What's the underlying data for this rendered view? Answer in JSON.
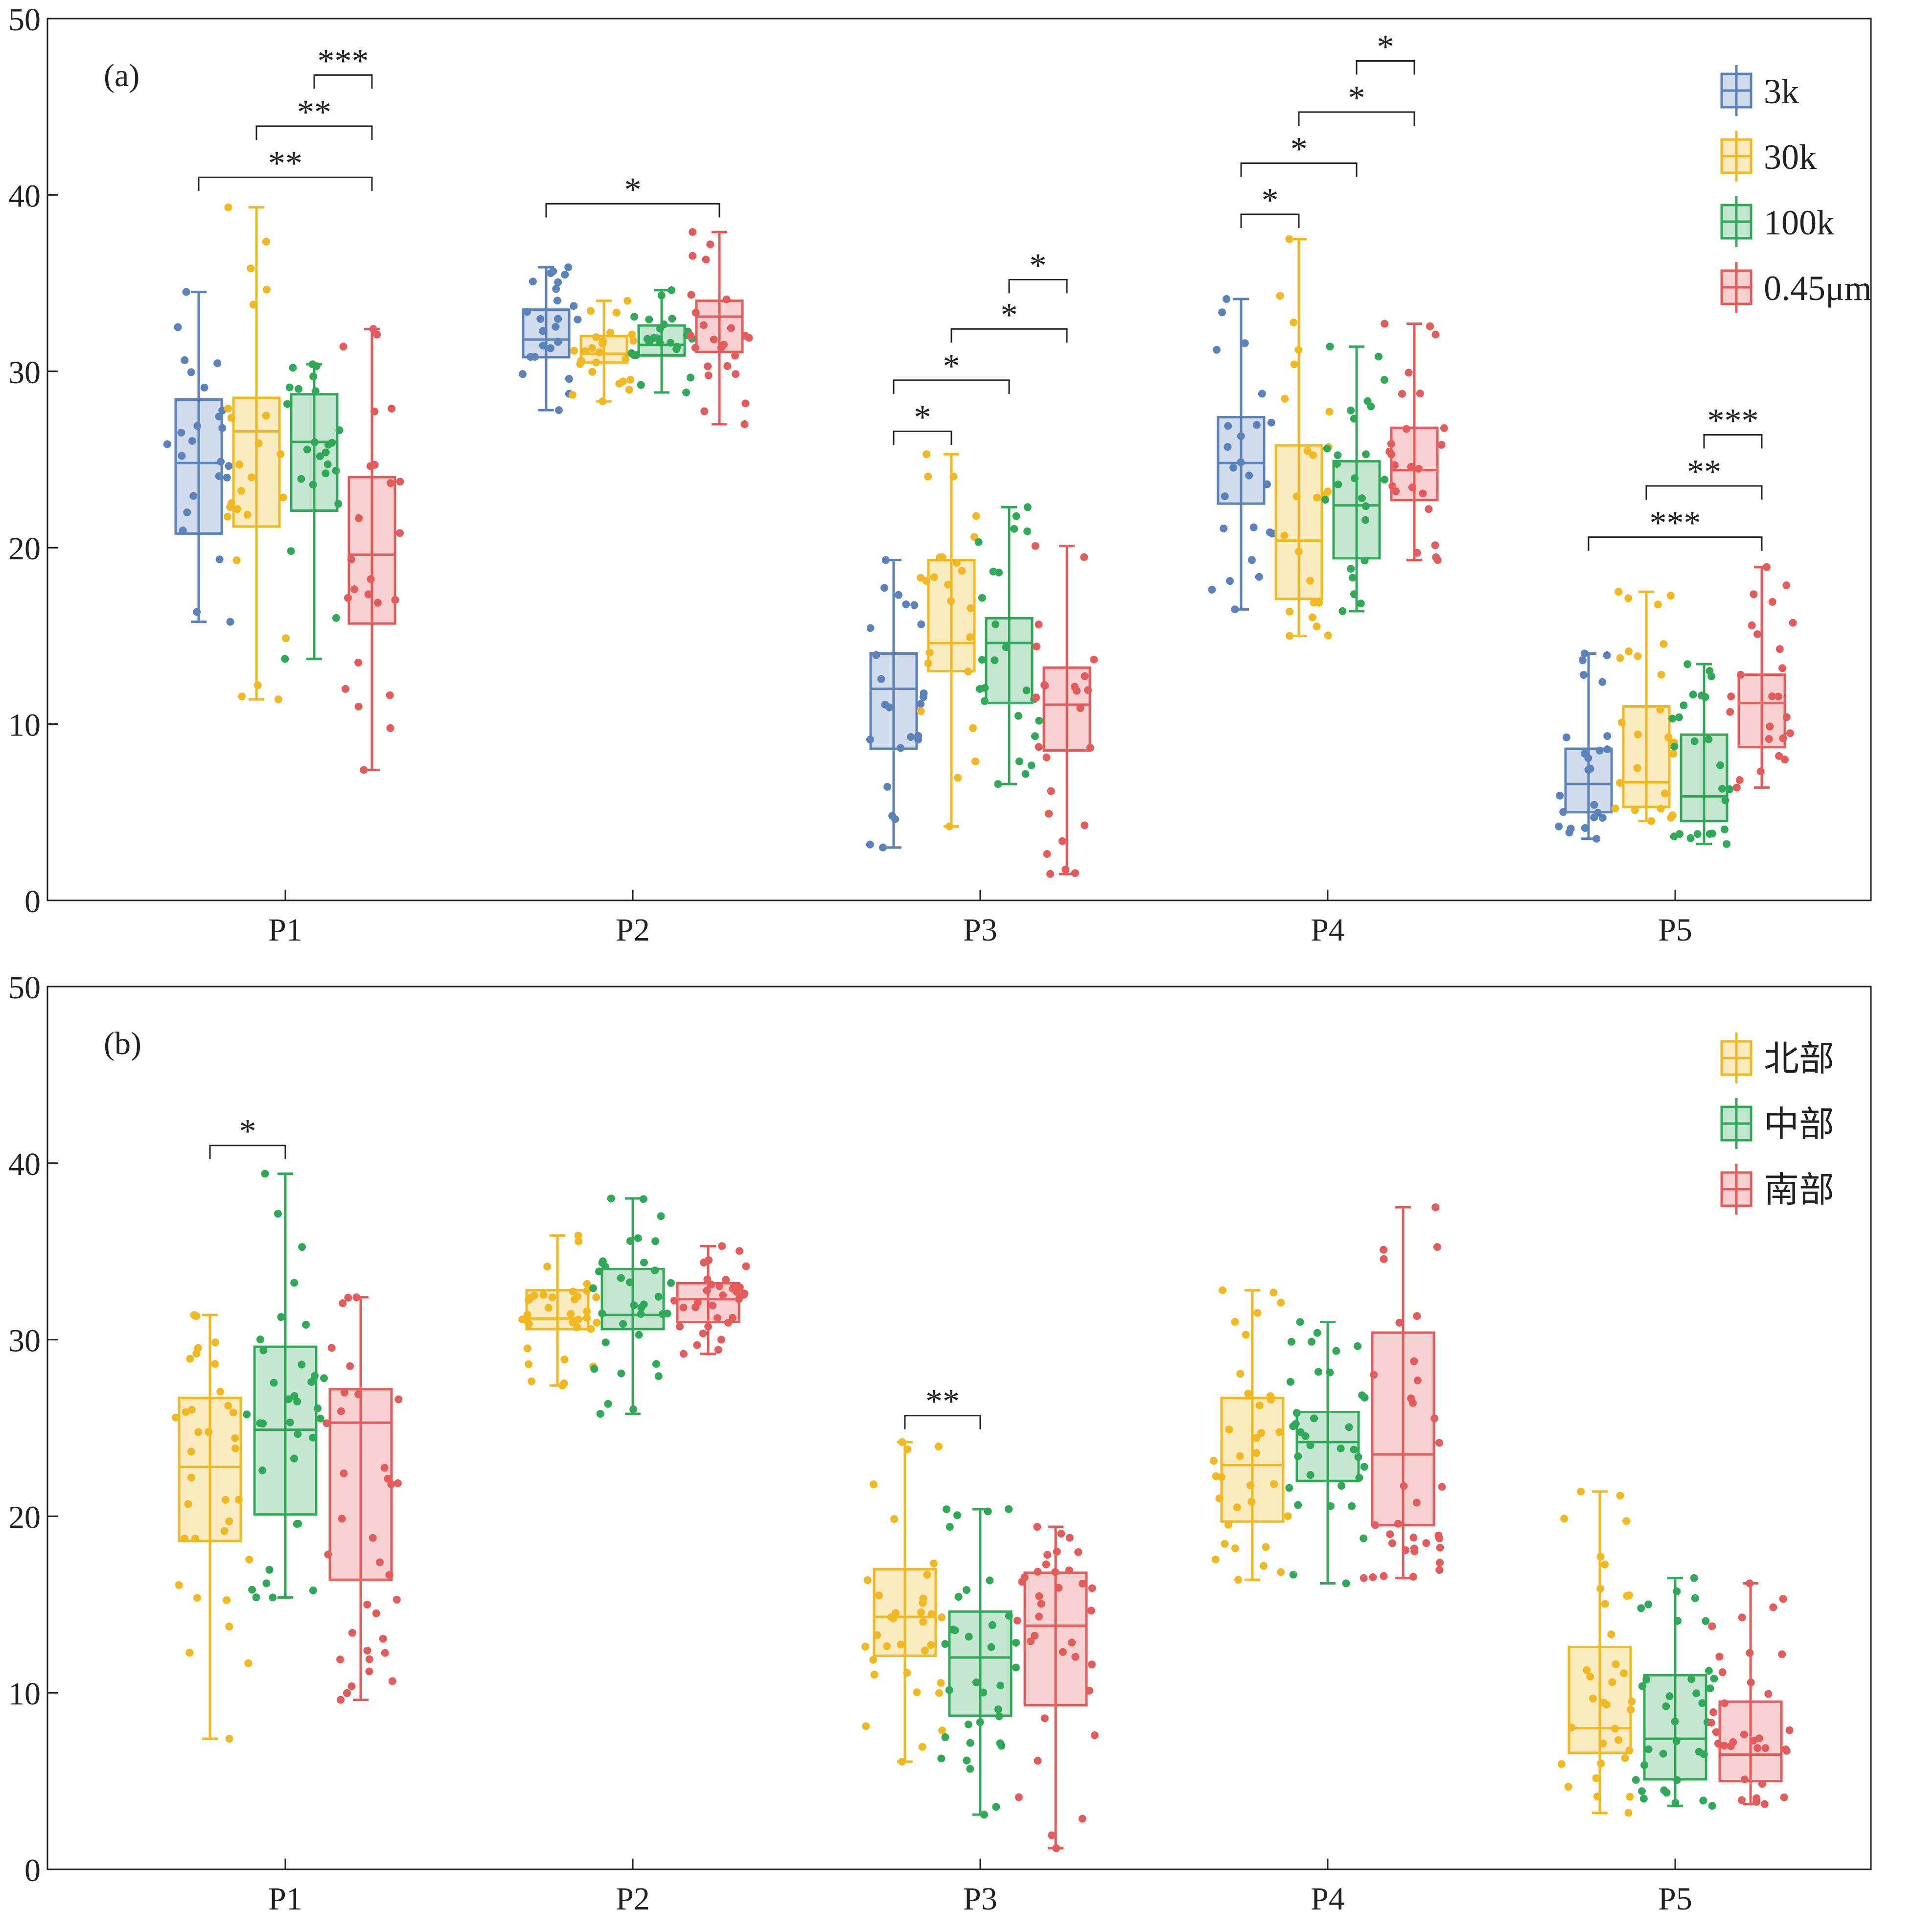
{
  "colors": {
    "blue": "#5b82bb",
    "yellow": "#f2b822",
    "green": "#30aa58",
    "red": "#e35b5b",
    "axis": "#222222"
  },
  "chart_data": [
    {
      "type": "box",
      "panel_label": "(a)",
      "categories": [
        "P1",
        "P2",
        "P3",
        "P4",
        "P5"
      ],
      "ylim": [
        0,
        50
      ],
      "yticks": [
        "0",
        "10",
        "20",
        "30",
        "40",
        "50"
      ],
      "legend": [
        "3k",
        "30k",
        "100k",
        "0.45μm"
      ],
      "series": [
        {
          "name": "3k",
          "color": "blue",
          "boxes": [
            {
              "min": 15.8,
              "q1": 20.8,
              "median": 24.8,
              "q3": 28.4,
              "max": 34.5
            },
            {
              "min": 27.8,
              "q1": 30.8,
              "median": 31.8,
              "q3": 33.5,
              "max": 35.9
            },
            {
              "min": 3.0,
              "q1": 8.6,
              "median": 12.0,
              "q3": 14.0,
              "max": 19.3
            },
            {
              "min": 16.5,
              "q1": 22.5,
              "median": 24.8,
              "q3": 27.4,
              "max": 34.1
            },
            {
              "min": 3.5,
              "q1": 5.0,
              "median": 6.6,
              "q3": 8.6,
              "max": 14.0
            }
          ]
        },
        {
          "name": "30k",
          "color": "yellow",
          "boxes": [
            {
              "min": 11.4,
              "q1": 21.2,
              "median": 26.6,
              "q3": 28.5,
              "max": 39.3
            },
            {
              "min": 28.3,
              "q1": 30.5,
              "median": 31.0,
              "q3": 32.0,
              "max": 34.0
            },
            {
              "min": 4.2,
              "q1": 13.0,
              "median": 14.6,
              "q3": 19.3,
              "max": 25.3
            },
            {
              "min": 15.0,
              "q1": 17.1,
              "median": 20.4,
              "q3": 25.8,
              "max": 37.5
            },
            {
              "min": 4.5,
              "q1": 5.3,
              "median": 6.7,
              "q3": 11.0,
              "max": 17.5
            }
          ]
        },
        {
          "name": "100k",
          "color": "green",
          "boxes": [
            {
              "min": 13.7,
              "q1": 22.1,
              "median": 26.0,
              "q3": 28.7,
              "max": 30.4
            },
            {
              "min": 28.8,
              "q1": 30.9,
              "median": 31.5,
              "q3": 32.6,
              "max": 34.6
            },
            {
              "min": 6.6,
              "q1": 11.2,
              "median": 14.6,
              "q3": 16.0,
              "max": 22.3
            },
            {
              "min": 16.4,
              "q1": 19.4,
              "median": 22.4,
              "q3": 24.9,
              "max": 31.4
            },
            {
              "min": 3.2,
              "q1": 4.5,
              "median": 5.9,
              "q3": 9.4,
              "max": 13.4
            }
          ]
        },
        {
          "name": "0.45μm",
          "color": "red",
          "boxes": [
            {
              "min": 7.4,
              "q1": 15.7,
              "median": 19.6,
              "q3": 24.0,
              "max": 32.4
            },
            {
              "min": 27.0,
              "q1": 31.1,
              "median": 33.1,
              "q3": 34.0,
              "max": 37.9
            },
            {
              "min": 1.5,
              "q1": 8.5,
              "median": 11.1,
              "q3": 13.2,
              "max": 20.1
            },
            {
              "min": 19.3,
              "q1": 22.7,
              "median": 24.4,
              "q3": 26.8,
              "max": 32.7
            },
            {
              "min": 6.4,
              "q1": 8.7,
              "median": 11.2,
              "q3": 12.8,
              "max": 18.9
            }
          ]
        }
      ],
      "significance": [
        {
          "category": 0,
          "from": 2,
          "to": 3,
          "y": 46.8,
          "label": "***"
        },
        {
          "category": 0,
          "from": 1,
          "to": 3,
          "y": 43.9,
          "label": "**"
        },
        {
          "category": 0,
          "from": 0,
          "to": 3,
          "y": 41.0,
          "label": "**"
        },
        {
          "category": 1,
          "from": 0,
          "to": 3,
          "y": 39.5,
          "label": "*"
        },
        {
          "category": 2,
          "from": 2,
          "to": 3,
          "y": 35.2,
          "label": "*"
        },
        {
          "category": 2,
          "from": 1,
          "to": 3,
          "y": 32.4,
          "label": "*"
        },
        {
          "category": 2,
          "from": 0,
          "to": 2,
          "y": 29.5,
          "label": "*"
        },
        {
          "category": 2,
          "from": 0,
          "to": 1,
          "y": 26.6,
          "label": "*"
        },
        {
          "category": 3,
          "from": 2,
          "to": 3,
          "y": 47.6,
          "label": "*"
        },
        {
          "category": 3,
          "from": 1,
          "to": 3,
          "y": 44.7,
          "label": "*"
        },
        {
          "category": 3,
          "from": 0,
          "to": 2,
          "y": 41.8,
          "label": "*"
        },
        {
          "category": 3,
          "from": 0,
          "to": 1,
          "y": 38.9,
          "label": "*"
        },
        {
          "category": 4,
          "from": 2,
          "to": 3,
          "y": 26.4,
          "label": "***"
        },
        {
          "category": 4,
          "from": 1,
          "to": 3,
          "y": 23.5,
          "label": "**"
        },
        {
          "category": 4,
          "from": 0,
          "to": 3,
          "y": 20.6,
          "label": "***"
        }
      ]
    },
    {
      "type": "box",
      "panel_label": "(b)",
      "categories": [
        "P1",
        "P2",
        "P3",
        "P4",
        "P5"
      ],
      "ylim": [
        0,
        50
      ],
      "yticks": [
        "0",
        "10",
        "20",
        "30",
        "40",
        "50"
      ],
      "legend": [
        "北部",
        "中部",
        "南部"
      ],
      "series": [
        {
          "name": "北部",
          "color": "yellow",
          "boxes": [
            {
              "min": 7.4,
              "q1": 18.6,
              "median": 22.8,
              "q3": 26.7,
              "max": 31.4
            },
            {
              "min": 27.4,
              "q1": 30.6,
              "median": 31.2,
              "q3": 32.8,
              "max": 35.9
            },
            {
              "min": 6.1,
              "q1": 12.1,
              "median": 14.3,
              "q3": 17.0,
              "max": 24.2
            },
            {
              "min": 16.4,
              "q1": 19.7,
              "median": 22.9,
              "q3": 26.7,
              "max": 32.8
            },
            {
              "min": 3.2,
              "q1": 6.6,
              "median": 8.0,
              "q3": 12.6,
              "max": 21.4
            }
          ]
        },
        {
          "name": "中部",
          "color": "green",
          "boxes": [
            {
              "min": 15.4,
              "q1": 20.1,
              "median": 24.9,
              "q3": 29.6,
              "max": 39.4
            },
            {
              "min": 25.8,
              "q1": 30.6,
              "median": 31.4,
              "q3": 34.0,
              "max": 38.0
            },
            {
              "min": 3.1,
              "q1": 8.7,
              "median": 12.0,
              "q3": 14.6,
              "max": 20.4
            },
            {
              "min": 16.2,
              "q1": 22.0,
              "median": 24.2,
              "q3": 25.9,
              "max": 31.0
            },
            {
              "min": 3.6,
              "q1": 5.1,
              "median": 7.4,
              "q3": 11.0,
              "max": 16.5
            }
          ]
        },
        {
          "name": "南部",
          "color": "red",
          "boxes": [
            {
              "min": 9.6,
              "q1": 16.4,
              "median": 25.3,
              "q3": 27.2,
              "max": 32.4
            },
            {
              "min": 29.2,
              "q1": 31.0,
              "median": 32.3,
              "q3": 33.2,
              "max": 35.3
            },
            {
              "min": 1.2,
              "q1": 9.3,
              "median": 13.8,
              "q3": 16.8,
              "max": 19.4
            },
            {
              "min": 16.5,
              "q1": 19.5,
              "median": 23.5,
              "q3": 30.4,
              "max": 37.5
            },
            {
              "min": 3.7,
              "q1": 5.0,
              "median": 6.5,
              "q3": 9.5,
              "max": 16.2
            }
          ]
        }
      ],
      "significance": [
        {
          "category": 0,
          "from": 0,
          "to": 1,
          "y": 41.0,
          "label": "*"
        },
        {
          "category": 2,
          "from": 0,
          "to": 1,
          "y": 25.7,
          "label": "**"
        }
      ]
    }
  ]
}
